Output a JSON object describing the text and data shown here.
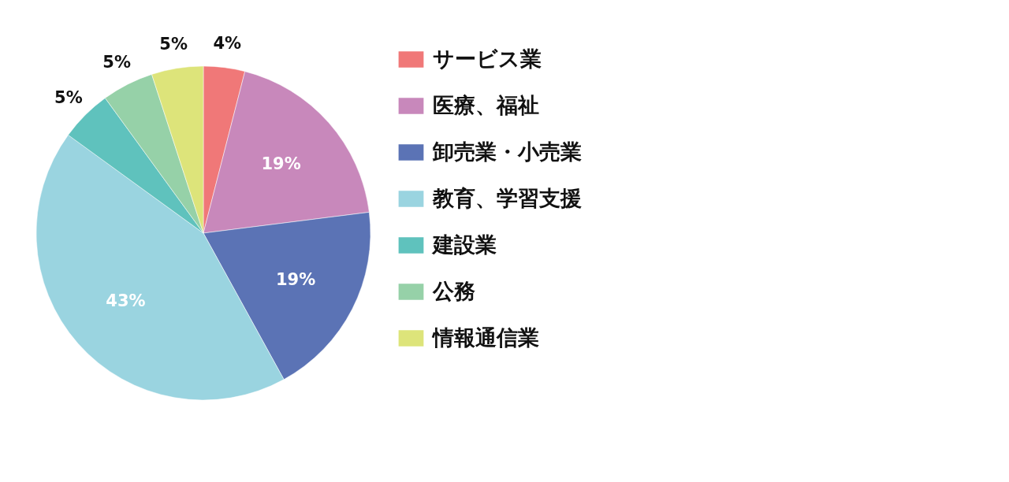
{
  "chart_data": {
    "type": "pie",
    "categories": [
      "サービス業",
      "医療、福祉",
      "卸売業・小売業",
      "教育、学習支援",
      "建設業",
      "公務",
      "情報通信業"
    ],
    "values": [
      4,
      19,
      19,
      43,
      5,
      5,
      5
    ],
    "colors": [
      "#f07878",
      "#c888bb",
      "#5b73b5",
      "#9ad4e0",
      "#5fc2bd",
      "#96d1a8",
      "#dde47a"
    ],
    "value_labels": [
      "4%",
      "19%",
      "19%",
      "43%",
      "5%",
      "5%",
      "5%"
    ],
    "legend": "right"
  }
}
